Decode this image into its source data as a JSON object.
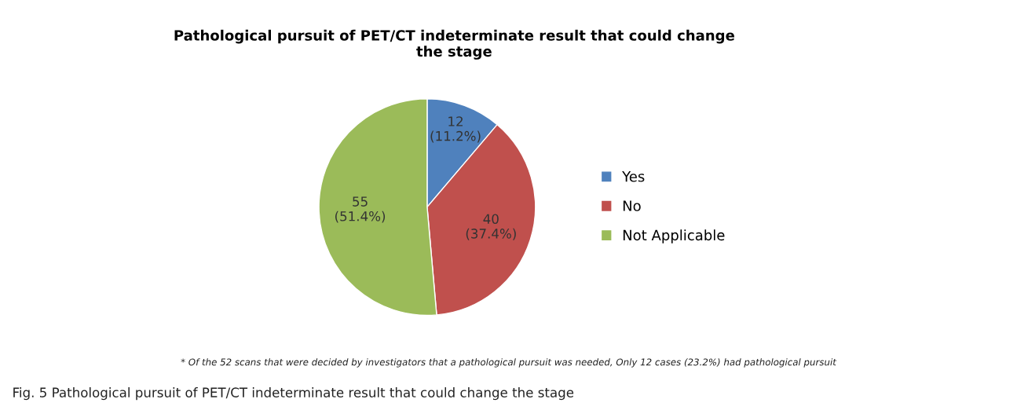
{
  "chart_data": {
    "type": "pie",
    "title": "Pathological pursuit of PET/CT indeterminate result that could change\nthe stage",
    "categories": [
      "Yes",
      "No",
      "Not Applicable"
    ],
    "values": [
      12,
      40,
      55
    ],
    "colors": [
      "#4f81bd",
      "#c0504d",
      "#9bbb59"
    ],
    "value_labels": [
      "12\n(11.2%)",
      "40\n(37.4%)",
      "55\n(51.4%)"
    ],
    "legend": "right",
    "annotations": [
      "* Of the 52 scans that were decided by investigators that a pathological pursuit was needed, Only 12 cases (23.2%) had pathological pursuit",
      "Fig. 5 Pathological pursuit of PET/CT indeterminate result that could change the stage"
    ]
  }
}
